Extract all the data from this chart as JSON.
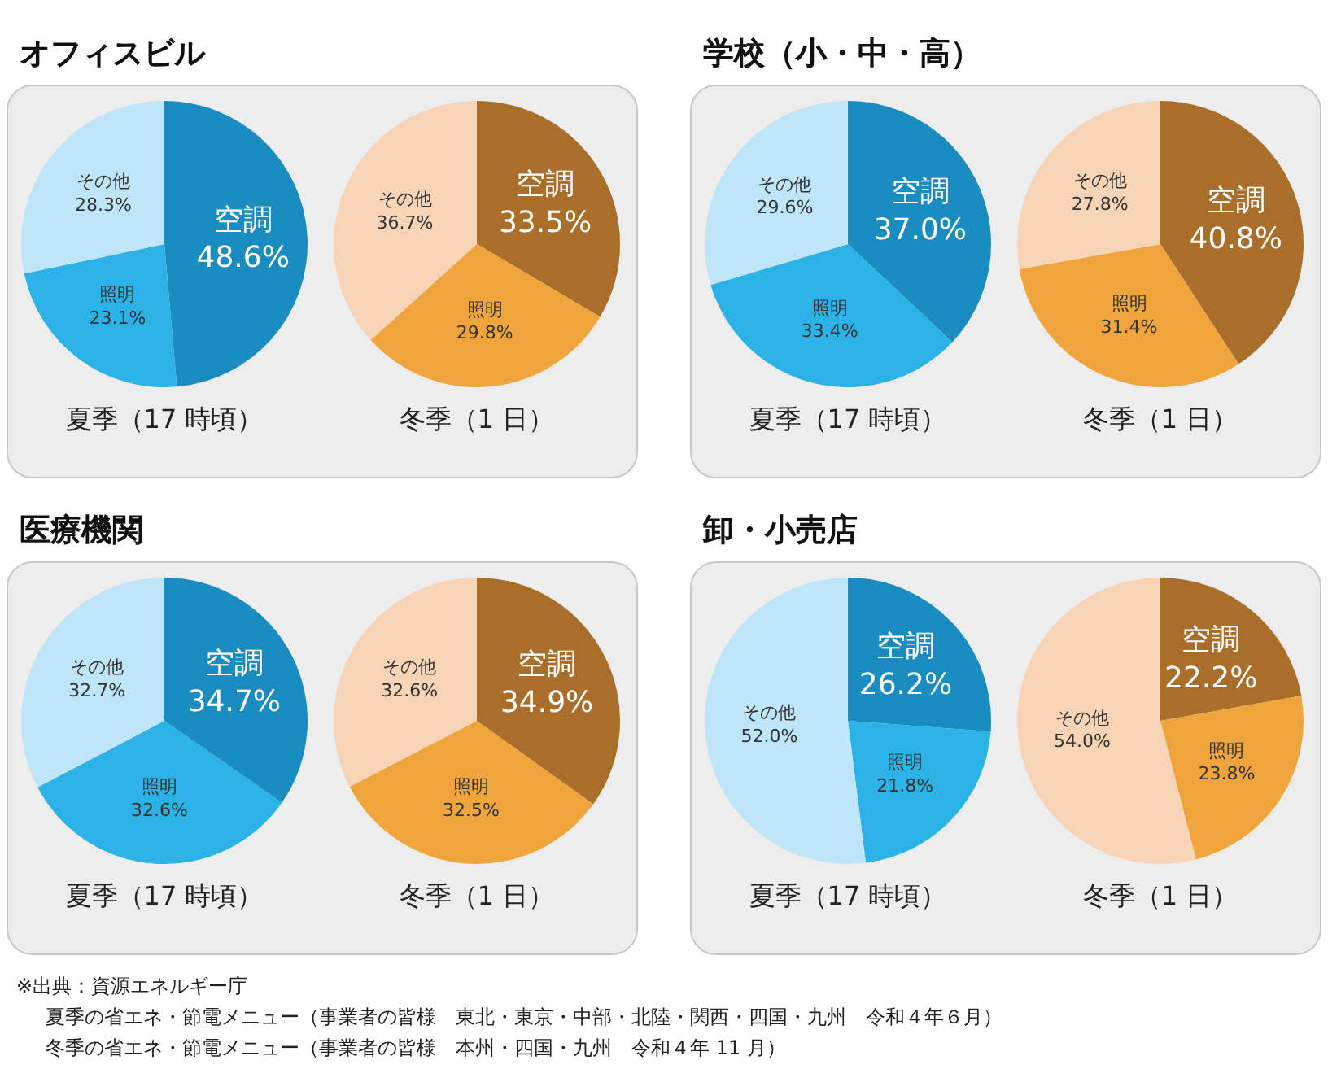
{
  "chart_data": [
    {
      "type": "pie",
      "title": "オフィスビル",
      "xlabel": "夏季（17 時頃）",
      "categories": [
        "空調",
        "照明",
        "その他"
      ],
      "values": [
        48.6,
        23.1,
        28.3
      ],
      "value_labels": [
        "48.6%",
        "23.1%",
        "28.3%"
      ],
      "colors": [
        "#1a8cc0",
        "#2bb2e6",
        "#bfe5f8"
      ]
    },
    {
      "type": "pie",
      "xlabel": "冬季（1 日）",
      "categories": [
        "空調",
        "照明",
        "その他"
      ],
      "values": [
        33.5,
        29.8,
        36.7
      ],
      "value_labels": [
        "33.5%",
        "29.8%",
        "36.7%"
      ],
      "colors": [
        "#a86e2a",
        "#f0a53c",
        "#f8d4b6"
      ]
    },
    {
      "type": "pie",
      "title": "学校（小・中・高）",
      "xlabel": "夏季（17 時頃）",
      "categories": [
        "空調",
        "照明",
        "その他"
      ],
      "values": [
        37.0,
        33.4,
        29.6
      ],
      "value_labels": [
        "37.0%",
        "33.4%",
        "29.6%"
      ],
      "colors": [
        "#1a8cc0",
        "#2bb2e6",
        "#bfe5f8"
      ]
    },
    {
      "type": "pie",
      "xlabel": "冬季（1 日）",
      "categories": [
        "空調",
        "照明",
        "その他"
      ],
      "values": [
        40.8,
        31.4,
        27.8
      ],
      "value_labels": [
        "40.8%",
        "31.4%",
        "27.8%"
      ],
      "colors": [
        "#a86e2a",
        "#f0a53c",
        "#f8d4b6"
      ]
    },
    {
      "type": "pie",
      "title": "医療機関",
      "xlabel": "夏季（17 時頃）",
      "categories": [
        "空調",
        "照明",
        "その他"
      ],
      "values": [
        34.7,
        32.6,
        32.7
      ],
      "value_labels": [
        "34.7%",
        "32.6%",
        "32.7%"
      ],
      "colors": [
        "#1a8cc0",
        "#2bb2e6",
        "#bfe5f8"
      ]
    },
    {
      "type": "pie",
      "xlabel": "冬季（1 日）",
      "categories": [
        "空調",
        "照明",
        "その他"
      ],
      "values": [
        34.9,
        32.5,
        32.6
      ],
      "value_labels": [
        "34.9%",
        "32.5%",
        "32.6%"
      ],
      "colors": [
        "#a86e2a",
        "#f0a53c",
        "#f8d4b6"
      ]
    },
    {
      "type": "pie",
      "title": "卸・小売店",
      "xlabel": "夏季（17 時頃）",
      "categories": [
        "空調",
        "照明",
        "その他"
      ],
      "values": [
        26.2,
        21.8,
        52.0
      ],
      "value_labels": [
        "26.2%",
        "21.8%",
        "52.0%"
      ],
      "colors": [
        "#1a8cc0",
        "#2bb2e6",
        "#bfe5f8"
      ]
    },
    {
      "type": "pie",
      "xlabel": "冬季（1 日）",
      "categories": [
        "空調",
        "照明",
        "その他"
      ],
      "values": [
        22.2,
        23.8,
        54.0
      ],
      "value_labels": [
        "22.2%",
        "23.8%",
        "54.0%"
      ],
      "colors": [
        "#a86e2a",
        "#f0a53c",
        "#f8d4b6"
      ],
      "annotations": [
        "※出典：資源エネルギー庁",
        "夏季の省エネ・節電メニュー（事業者の皆様　東北・東京・中部・北陸・関西・四国・九州　令和４年６月）",
        "冬季の省エネ・節電メニュー（事業者の皆様　本州・四国・九州　令和４年 11 月）"
      ]
    }
  ]
}
